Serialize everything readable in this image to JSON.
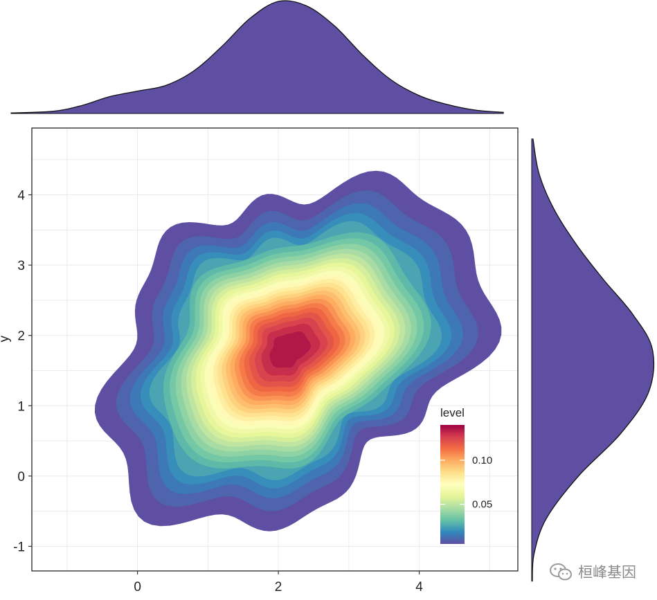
{
  "chart_data": {
    "type": "heatmap",
    "title": "",
    "xlabel": "",
    "ylabel": "y",
    "xlim": [
      -1.5,
      5.4
    ],
    "ylim": [
      -1.35,
      4.95
    ],
    "x_ticks": [
      "0",
      "2",
      "4"
    ],
    "x_tick_values": [
      0,
      2,
      4
    ],
    "y_ticks": [
      "-1",
      "0",
      "1",
      "2",
      "3",
      "4"
    ],
    "y_tick_values": [
      -1,
      0,
      1,
      2,
      3,
      4
    ],
    "grid": true,
    "density_2d": {
      "peak": [
        2.15,
        1.8
      ],
      "max_level": 0.14,
      "levels": [
        0.005,
        0.01,
        0.015,
        0.02,
        0.025,
        0.03,
        0.035,
        0.04,
        0.045,
        0.05,
        0.055,
        0.06,
        0.065,
        0.07,
        0.075,
        0.08,
        0.085,
        0.09,
        0.095,
        0.1,
        0.105,
        0.11,
        0.115,
        0.12,
        0.125,
        0.13,
        0.135
      ]
    },
    "legend": {
      "title": "level",
      "position": "bottom-right inside",
      "ticks": [
        "0.05",
        "0.10"
      ],
      "tick_values": [
        0.05,
        0.1
      ],
      "range": [
        0.005,
        0.14
      ],
      "palette": [
        "#5E4FA2",
        "#3288BD",
        "#66C2A5",
        "#ABDDA4",
        "#E6F598",
        "#FFFFBF",
        "#FEE08B",
        "#FDAE61",
        "#F46D43",
        "#D53E4F",
        "#9E0142"
      ]
    },
    "marginal_x": {
      "type": "area",
      "fill": "#5E4FA2",
      "x": [
        -1.8,
        -1.2,
        -0.8,
        -0.4,
        0,
        0.4,
        0.8,
        1.2,
        1.6,
        2,
        2.4,
        2.8,
        3.2,
        3.6,
        4,
        4.4,
        4.8,
        5.2
      ],
      "density": [
        0.005,
        0.02,
        0.07,
        0.15,
        0.2,
        0.25,
        0.38,
        0.6,
        0.85,
        1.0,
        0.96,
        0.78,
        0.52,
        0.3,
        0.16,
        0.08,
        0.03,
        0.01
      ]
    },
    "marginal_y": {
      "type": "area",
      "fill": "#5E4FA2",
      "y": [
        -1.5,
        -1.1,
        -0.6,
        0,
        0.6,
        1.2,
        1.8,
        2.3,
        2.8,
        3.3,
        3.8,
        4.3,
        4.8
      ],
      "density": [
        0.005,
        0.02,
        0.12,
        0.38,
        0.72,
        0.95,
        0.98,
        0.82,
        0.58,
        0.36,
        0.18,
        0.06,
        0.01
      ]
    }
  },
  "watermark": {
    "text": "桓峰基因",
    "icon": "wechat-icon"
  }
}
